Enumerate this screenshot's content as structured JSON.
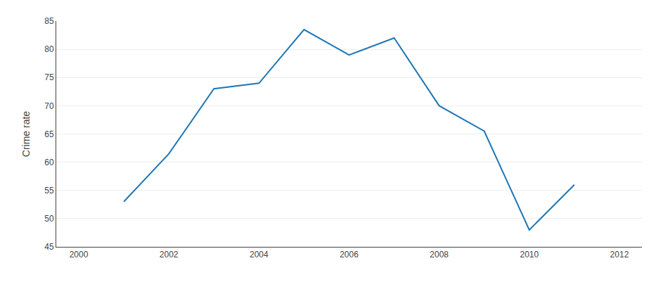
{
  "chart_data": {
    "type": "line",
    "x": [
      2001,
      2002,
      2003,
      2004,
      2005,
      2006,
      2007,
      2008,
      2009,
      2010,
      2011
    ],
    "values": [
      53.0,
      61.5,
      73.0,
      74.0,
      83.5,
      79.0,
      82.0,
      70.0,
      65.5,
      48.0,
      56.0
    ],
    "xlim": [
      1999.5,
      2012.5
    ],
    "xticks": [
      2000,
      2002,
      2004,
      2006,
      2008,
      2010,
      2012
    ],
    "ylim": [
      45,
      85
    ],
    "yticks": [
      45,
      50,
      55,
      60,
      65,
      70,
      75,
      80,
      85
    ],
    "ylabel": "Crime rate",
    "grid": "y"
  }
}
